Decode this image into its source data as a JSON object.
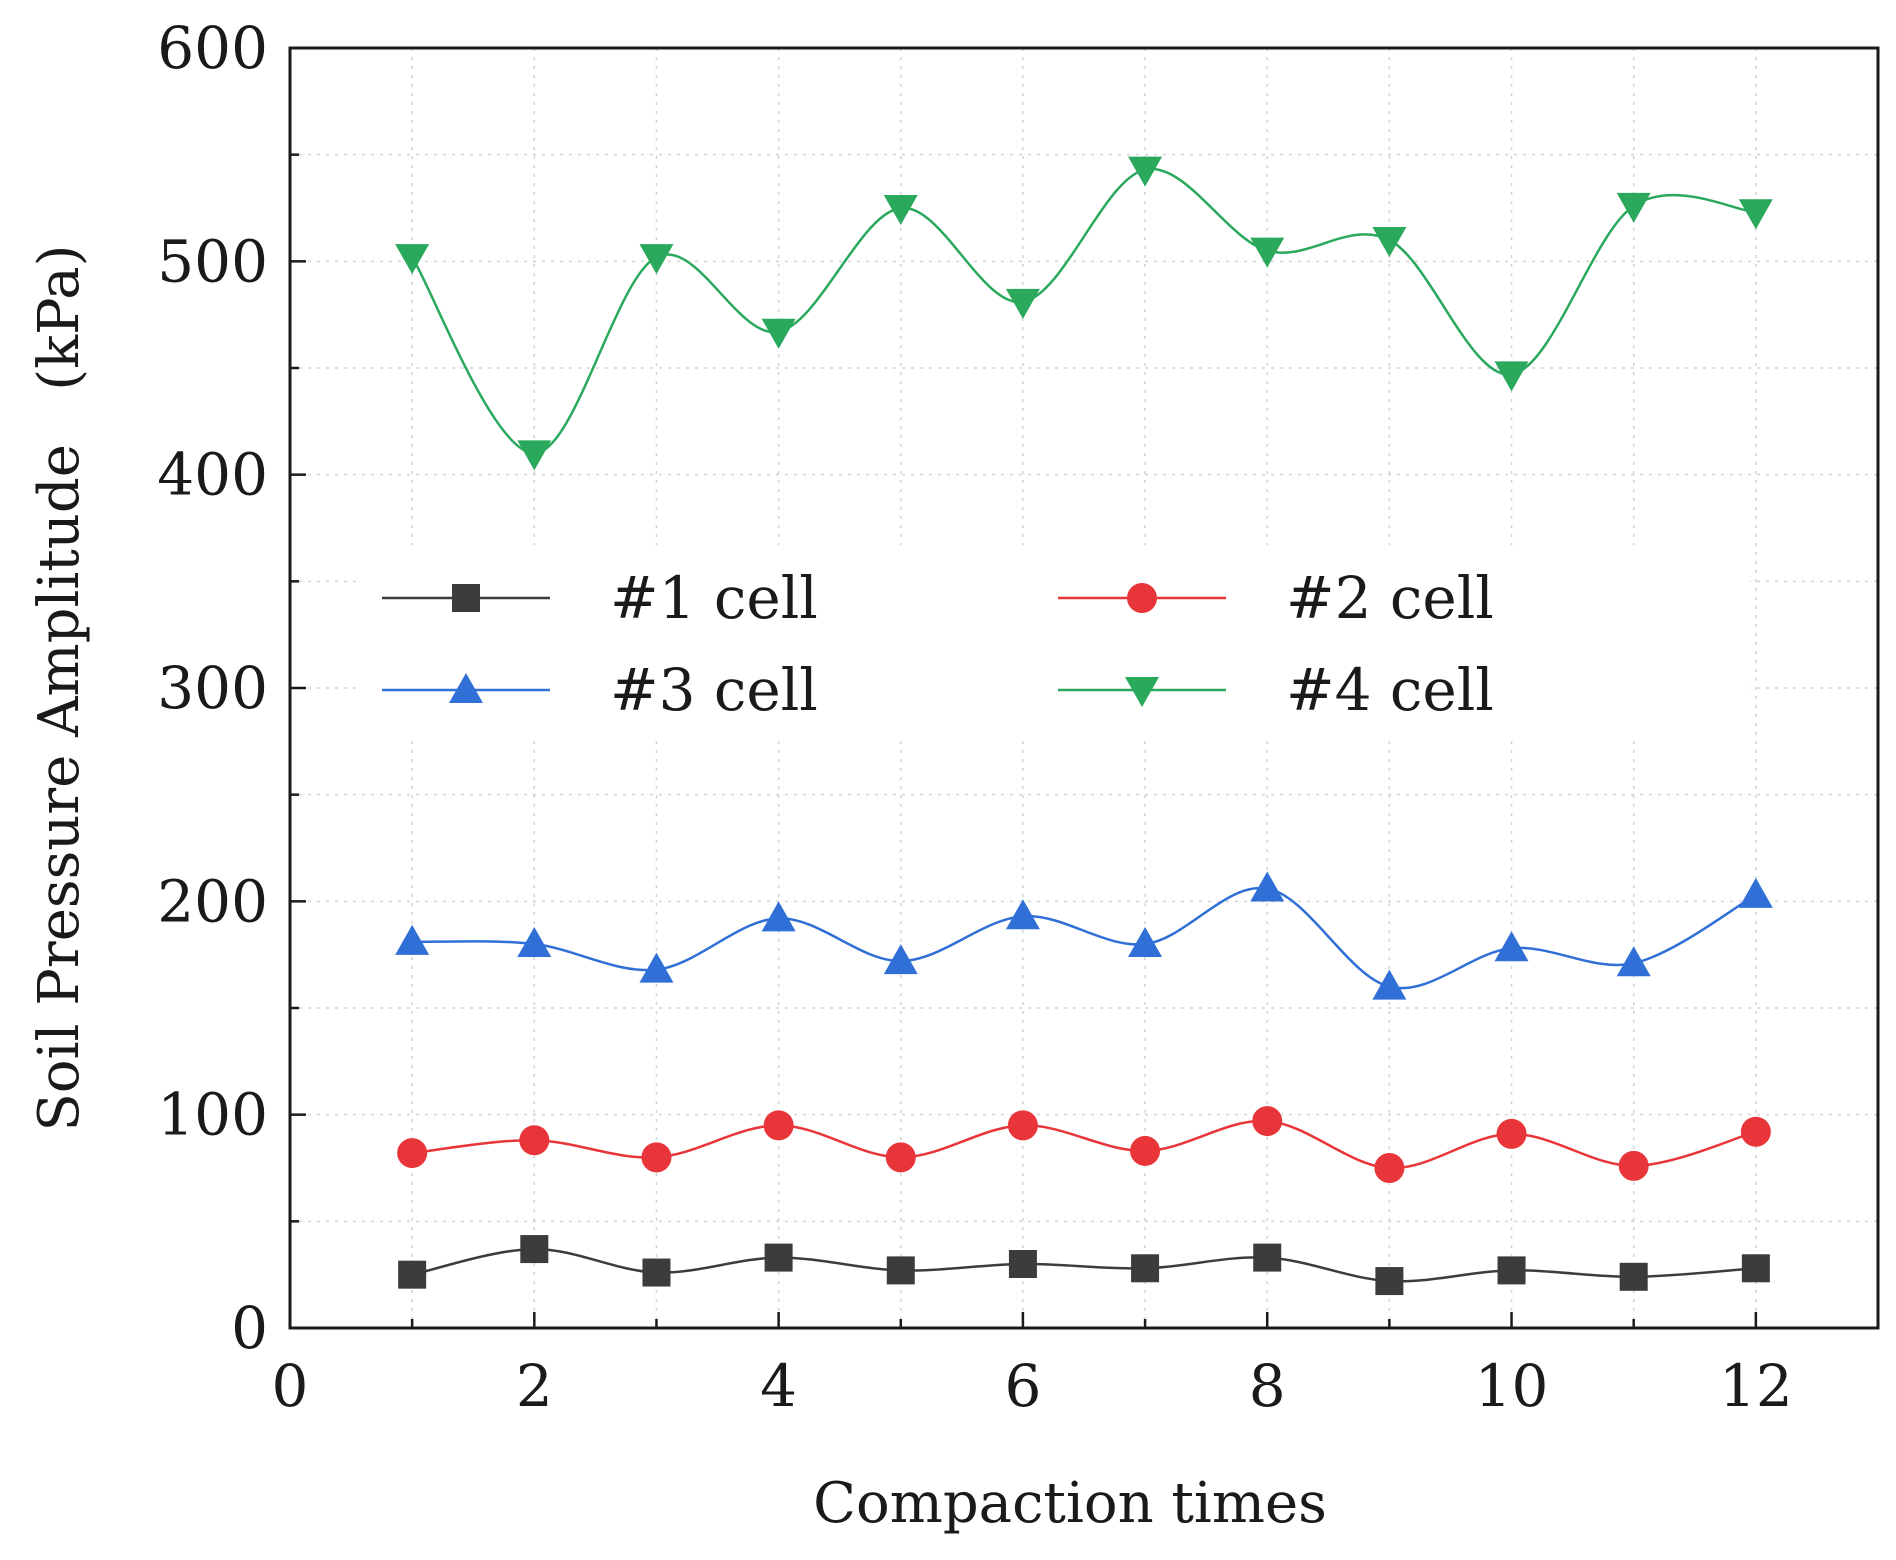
{
  "chart_data": {
    "type": "line",
    "title": "",
    "xlabel": "Compaction times",
    "ylabel": "Soil Pressure Amplitude   (kPa)",
    "xlim": [
      0,
      13
    ],
    "ylim": [
      0,
      600
    ],
    "xticks": [
      0,
      2,
      4,
      6,
      8,
      10,
      12
    ],
    "yticks": [
      0,
      100,
      200,
      300,
      400,
      500,
      600
    ],
    "grid": true,
    "legend_position": "center",
    "x": [
      1,
      2,
      3,
      4,
      5,
      6,
      7,
      8,
      9,
      10,
      11,
      12
    ],
    "series": [
      {
        "name": "#1 cell",
        "color": "#3c3c3c",
        "marker": "square",
        "values": [
          25,
          37,
          26,
          33,
          27,
          30,
          28,
          33,
          22,
          27,
          24,
          28
        ]
      },
      {
        "name": "#2 cell",
        "color": "#e8353a",
        "marker": "circle",
        "values": [
          82,
          88,
          80,
          95,
          80,
          95,
          83,
          97,
          75,
          91,
          76,
          92
        ]
      },
      {
        "name": "#3 cell",
        "color": "#2f6fd6",
        "marker": "triangle-up",
        "values": [
          181,
          180,
          168,
          192,
          172,
          193,
          180,
          206,
          160,
          178,
          171,
          203
        ]
      },
      {
        "name": "#4 cell",
        "color": "#2aa85c",
        "marker": "triangle-down",
        "values": [
          502,
          410,
          502,
          467,
          525,
          481,
          543,
          505,
          510,
          447,
          526,
          523
        ]
      }
    ]
  }
}
